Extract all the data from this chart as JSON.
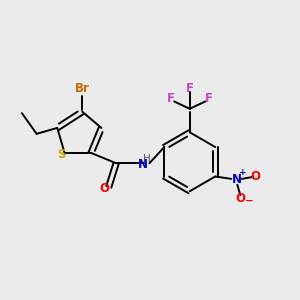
{
  "bg_color": "#ebebeb",
  "atom_colors": {
    "S": "#ccaa00",
    "Br": "#cc6600",
    "O": "#ff0000",
    "N_amide": "#0000cc",
    "N_nitro": "#0000cc",
    "F": "#cc44cc",
    "C": "#000000",
    "H": "#555555"
  },
  "bond_color": "#000000",
  "lw": 1.4,
  "fs": 8.5
}
